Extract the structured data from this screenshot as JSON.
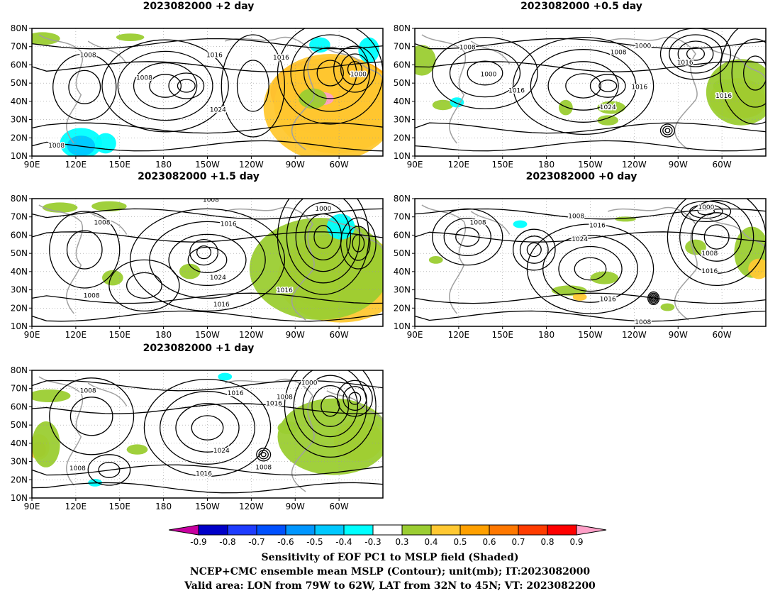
{
  "panels": [
    {
      "title": "2023082000 +2 day",
      "col": 0,
      "row": 0,
      "labels": [
        {
          "t": "1008"
        },
        {
          "t": "1008"
        },
        {
          "t": "1016"
        },
        {
          "t": "1016"
        },
        {
          "t": "1024"
        },
        {
          "t": "1000"
        },
        {
          "t": "1008"
        }
      ]
    },
    {
      "title": "2023082000 +0.5 day",
      "col": 1,
      "row": 0,
      "labels": [
        {
          "t": "1008"
        },
        {
          "t": "1000"
        },
        {
          "t": "1016"
        },
        {
          "t": "1008"
        },
        {
          "t": "1000"
        },
        {
          "t": "1016"
        },
        {
          "t": "1024"
        },
        {
          "t": "1016"
        },
        {
          "t": "1016"
        }
      ]
    },
    {
      "title": "2023082000 +1.5 day",
      "col": 0,
      "row": 1,
      "labels": [
        {
          "t": "1008"
        },
        {
          "t": "1008"
        },
        {
          "t": "1016"
        },
        {
          "t": "1000"
        },
        {
          "t": "1024"
        },
        {
          "t": "1016"
        },
        {
          "t": "1016"
        },
        {
          "t": "1008"
        }
      ]
    },
    {
      "title": "2023082000 +0 day",
      "col": 1,
      "row": 1,
      "labels": [
        {
          "t": "1008"
        },
        {
          "t": "1008"
        },
        {
          "t": "1016"
        },
        {
          "t": "1024"
        },
        {
          "t": "1000"
        },
        {
          "t": "1008"
        },
        {
          "t": "1016"
        },
        {
          "t": "1016"
        },
        {
          "t": "1008"
        }
      ]
    },
    {
      "title": "2023082000 +1 day",
      "col": 0,
      "row": 2,
      "labels": [
        {
          "t": "1008"
        },
        {
          "t": "1016"
        },
        {
          "t": "1016"
        },
        {
          "t": "1008"
        },
        {
          "t": "1000"
        },
        {
          "t": "1024"
        },
        {
          "t": "1016"
        },
        {
          "t": "1008"
        },
        {
          "t": "1008"
        }
      ]
    }
  ],
  "axes": {
    "lat_labels": [
      "80N",
      "70N",
      "60N",
      "50N",
      "40N",
      "30N",
      "20N",
      "10N"
    ],
    "lon_labels": [
      "90E",
      "120E",
      "150E",
      "180",
      "150W",
      "120W",
      "90W",
      "60W"
    ]
  },
  "colorbar": {
    "labels": [
      "-0.9",
      "-0.8",
      "-0.7",
      "-0.6",
      "-0.5",
      "-0.4",
      "-0.3",
      "0.3",
      "0.4",
      "0.5",
      "0.6",
      "0.7",
      "0.8",
      "0.9"
    ],
    "colors": [
      "#c800a0",
      "#0000c8",
      "#1e3cff",
      "#0050ff",
      "#0096ff",
      "#00c8ff",
      "#00ffff",
      "#ffffff",
      "#9bcd32",
      "#ffc832",
      "#ffa000",
      "#ff7800",
      "#ff3c00",
      "#ff0000",
      "#ffa0c8"
    ]
  },
  "caption": {
    "line1": "Sensitivity of EOF PC1 to MSLP field (Shaded)",
    "line2": "NCEP+CMC ensemble mean MSLP (Contour); unit(mb); IT:2023082000",
    "line3": "Valid area: LON from 79W to 62W, LAT from 32N to 45N; VT: 2023082200"
  }
}
